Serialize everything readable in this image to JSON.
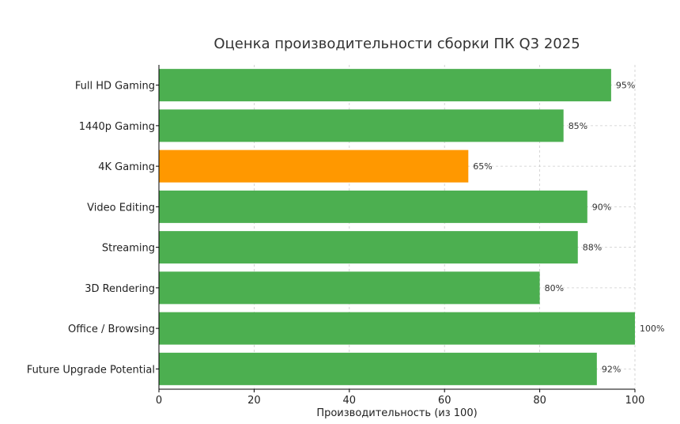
{
  "chart_data": {
    "type": "bar",
    "orientation": "horizontal",
    "title": "Оценка производительности сборки ПК Q3 2025",
    "xlabel": "Производительность (из 100)",
    "ylabel": "",
    "xlim": [
      0,
      100
    ],
    "xticks": [
      0,
      20,
      40,
      60,
      80,
      100
    ],
    "grid": true,
    "categories": [
      "Full HD Gaming",
      "1440p Gaming",
      "4K Gaming",
      "Video Editing",
      "Streaming",
      "3D Rendering",
      "Office / Browsing",
      "Future Upgrade Potential"
    ],
    "values": [
      95,
      85,
      65,
      90,
      88,
      80,
      100,
      92
    ],
    "value_labels": [
      "95%",
      "85%",
      "65%",
      "90%",
      "88%",
      "80%",
      "100%",
      "92%"
    ],
    "colors": [
      "#4caf50",
      "#4caf50",
      "#ff9800",
      "#4caf50",
      "#4caf50",
      "#4caf50",
      "#4caf50",
      "#4caf50"
    ]
  }
}
